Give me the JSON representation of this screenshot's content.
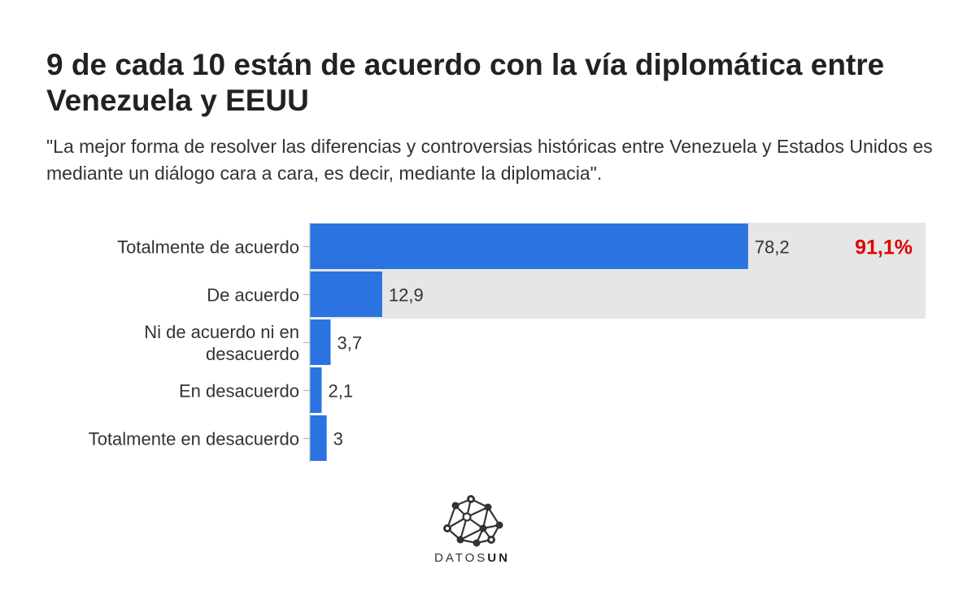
{
  "title": "9 de cada 10 están de acuerdo con la vía diplomática entre Venezuela y EEUU",
  "subtitle": "\"La mejor forma de resolver las diferencias y controversias históricas entre Venezuela y Estados Unidos es mediante un diálogo cara a cara, es decir, mediante la diplomacia\".",
  "chart_data": {
    "type": "bar",
    "orientation": "horizontal",
    "categories": [
      [
        "Totalmente de acuerdo"
      ],
      [
        "De acuerdo"
      ],
      [
        "Ni de acuerdo ni en",
        "desacuerdo"
      ],
      [
        "En desacuerdo"
      ],
      [
        "Totalmente en desacuerdo"
      ]
    ],
    "values": [
      78.2,
      12.9,
      3.7,
      2.1,
      3
    ],
    "value_labels": [
      "78,2",
      "12,9",
      "3,7",
      "2,1",
      "3"
    ],
    "xlim": [
      0,
      100
    ],
    "highlight": {
      "categories_index": [
        0,
        1
      ],
      "label": "91,1%",
      "label_color": "#e00000",
      "band_color": "#e6e6e6"
    },
    "bar_color": "#2a73e0",
    "grid": false
  },
  "branding": {
    "logo_icon": "network-nodes-icon",
    "name_part1": "DATOS",
    "name_part2": "UN"
  }
}
